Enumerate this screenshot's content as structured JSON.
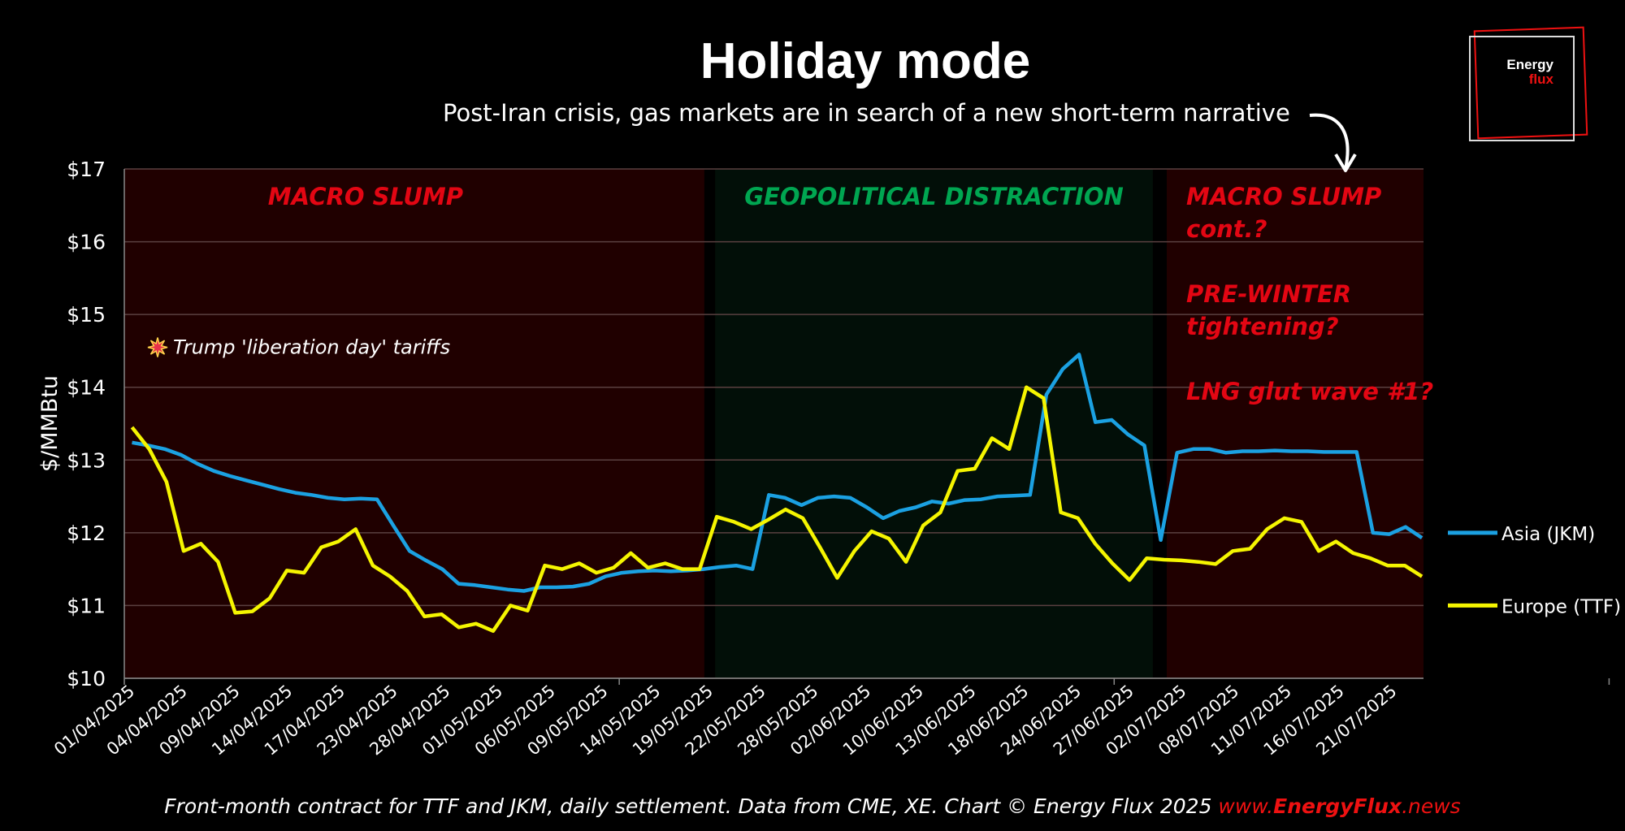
{
  "header": {
    "title": "Holiday mode",
    "subtitle": "Post-Iran crisis, gas markets are in search of a new short-term narrative"
  },
  "logo": {
    "line1": "Energy",
    "line2": "flux"
  },
  "footer": {
    "text": "Front-month contract for TTF and JKM, daily settlement. Data from CME, XE. Chart © Energy Flux 2025 ",
    "website_prefix": "www.",
    "website_brand": "EnergyFlux",
    "website_suffix": ".news"
  },
  "colors": {
    "background": "#000000",
    "macro_region": "#200000",
    "geo_region": "#020f08",
    "macro_label": "#e30613",
    "geo_label": "#00a651",
    "jkm": "#1ba1e2",
    "ttf": "#f5f500",
    "grid": "#5a4040",
    "text": "#ffffff"
  },
  "chart_data": {
    "type": "line",
    "ylabel": "$/MMBtu",
    "ylim": [
      10,
      17
    ],
    "yticks": [
      "$10",
      "$11",
      "$12",
      "$13",
      "$14",
      "$15",
      "$16",
      "$17"
    ],
    "xlim": [
      0,
      84
    ],
    "x_tick_labels": [
      "01/04/2025",
      "04/04/2025",
      "09/04/2025",
      "14/04/2025",
      "17/04/2025",
      "23/04/2025",
      "28/04/2025",
      "01/05/2025",
      "06/05/2025",
      "09/05/2025",
      "14/05/2025",
      "19/05/2025",
      "22/05/2025",
      "28/05/2025",
      "02/06/2025",
      "10/06/2025",
      "13/06/2025",
      "18/06/2025",
      "24/06/2025",
      "27/06/2025",
      "02/07/2025",
      "08/07/2025",
      "11/07/2025",
      "16/07/2025",
      "21/07/2025"
    ],
    "x_tick_step": 3.4,
    "regions": [
      {
        "label": "MACRO SLUMP",
        "lines": [],
        "start": 0,
        "end": 37.5,
        "kind": "macro"
      },
      {
        "label": "GEOPOLITICAL DISTRACTION",
        "lines": [],
        "start": 38.2,
        "end": 66.5,
        "kind": "geo"
      },
      {
        "label": "",
        "lines": [
          "MACRO SLUMP",
          "cont.?",
          "",
          "PRE-WINTER",
          "tightening?",
          "",
          "LNG glut wave #1?"
        ],
        "start": 67.4,
        "end": 84,
        "kind": "macro"
      }
    ],
    "annotation": {
      "text": "Trump 'liberation day' tariffs",
      "icon": "explosion-icon"
    },
    "series": [
      {
        "name": "Asia (JKM)",
        "color": "#1ba1e2",
        "values": [
          13.24,
          13.2,
          13.15,
          13.07,
          12.95,
          12.85,
          12.78,
          12.72,
          12.66,
          12.6,
          12.55,
          12.52,
          12.48,
          12.46,
          12.47,
          12.46,
          12.1,
          11.75,
          11.62,
          11.5,
          11.3,
          11.28,
          11.25,
          11.22,
          11.2,
          11.25,
          11.25,
          11.26,
          11.3,
          11.4,
          11.45,
          11.47,
          11.48,
          11.47,
          11.48,
          11.5,
          11.53,
          11.55,
          11.5,
          12.52,
          12.48,
          12.38,
          12.48,
          12.5,
          12.48,
          12.35,
          12.2,
          12.3,
          12.35,
          12.43,
          12.4,
          12.45,
          12.46,
          12.5,
          12.51,
          12.52,
          13.9,
          14.25,
          14.45,
          13.52,
          13.55,
          13.35,
          13.2,
          11.9,
          13.1,
          13.15,
          13.15,
          13.1,
          13.12,
          13.12,
          13.13,
          13.12,
          13.12,
          13.11,
          13.11,
          13.11,
          12.0,
          11.98,
          12.08,
          11.93
        ]
      },
      {
        "name": "Europe (TTF)",
        "color": "#f5f500",
        "values": [
          13.45,
          13.15,
          12.7,
          11.75,
          11.85,
          11.6,
          10.9,
          10.92,
          11.1,
          11.48,
          11.45,
          11.8,
          11.88,
          12.05,
          11.55,
          11.4,
          11.2,
          10.85,
          10.88,
          10.7,
          10.75,
          10.65,
          11.0,
          10.93,
          11.55,
          11.5,
          11.58,
          11.45,
          11.52,
          11.72,
          11.52,
          11.58,
          11.5,
          11.5,
          12.22,
          12.15,
          12.05,
          12.18,
          12.32,
          12.2,
          11.8,
          11.38,
          11.75,
          12.02,
          11.92,
          11.6,
          12.1,
          12.28,
          12.85,
          12.88,
          13.3,
          13.15,
          14.0,
          13.85,
          12.28,
          12.2,
          11.85,
          11.58,
          11.35,
          11.65,
          11.63,
          11.62,
          11.6,
          11.57,
          11.75,
          11.78,
          12.05,
          12.2,
          12.15,
          11.75,
          11.88,
          11.72,
          11.65,
          11.55,
          11.55,
          11.4
        ]
      }
    ],
    "legend": "right",
    "grid": true
  }
}
